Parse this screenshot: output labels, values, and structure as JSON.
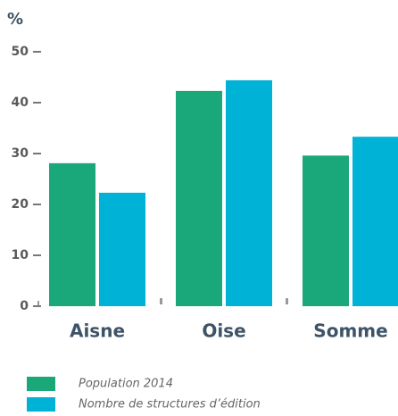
{
  "chart_data": {
    "type": "bar",
    "ylabel": "%",
    "categories": [
      "Aisne",
      "Oise",
      "Somme"
    ],
    "series": [
      {
        "name": "Population 2014",
        "color": "#1aa77a",
        "values": [
          28.1,
          42.3,
          29.6
        ]
      },
      {
        "name": "Nombre de structures d’édition",
        "color": "#00b2d6",
        "values": [
          22.3,
          44.4,
          33.3
        ]
      }
    ],
    "ylim": [
      0,
      50
    ],
    "yticks": [
      0,
      10,
      20,
      30,
      40,
      50
    ],
    "grid": false
  }
}
